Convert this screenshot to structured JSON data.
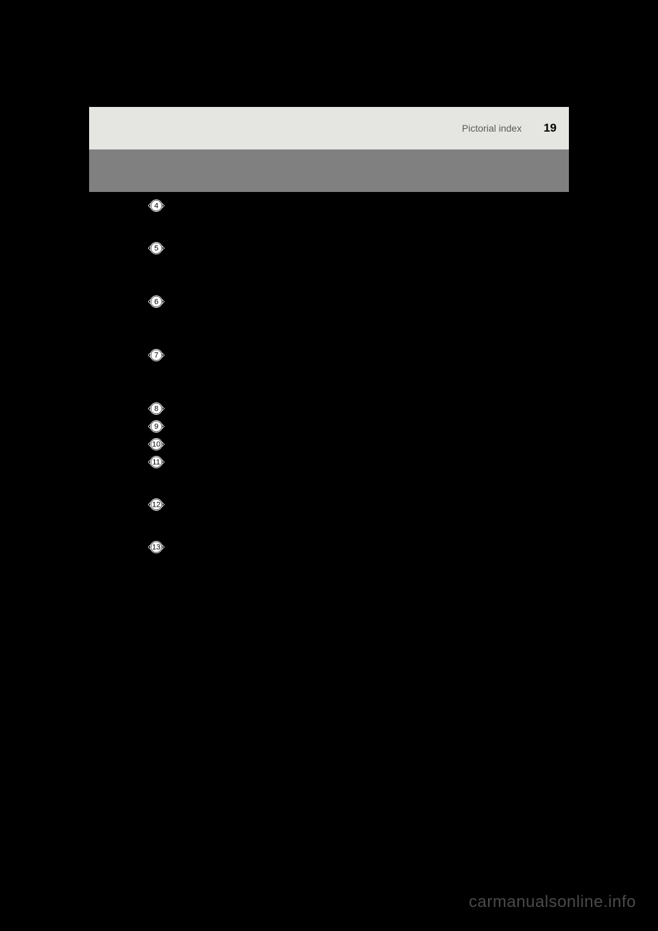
{
  "header": {
    "section_label": "Pictorial index",
    "page_number": "19"
  },
  "list": {
    "items": [
      {
        "number": 4,
        "spacing_after": 42
      },
      {
        "number": 5,
        "spacing_after": 58
      },
      {
        "number": 6,
        "spacing_after": 58
      },
      {
        "number": 7,
        "spacing_after": 58
      },
      {
        "number": 8,
        "spacing_after": 6
      },
      {
        "number": 9,
        "spacing_after": 6
      },
      {
        "number": 10,
        "spacing_after": 6
      },
      {
        "number": 11,
        "spacing_after": 42
      },
      {
        "number": 12,
        "spacing_after": 42
      },
      {
        "number": 13,
        "spacing_after": 0
      }
    ],
    "marker_fill": "#000000",
    "marker_stroke": "#ffffff",
    "marker_diameter": 18,
    "marker_fontsize": 11
  },
  "watermark": {
    "text": "carmanualsonline.info",
    "color": "#4a4a4a"
  },
  "colors": {
    "background": "#000000",
    "header_bg": "#e5e5e2",
    "subbar_bg": "#808080",
    "header_text": "#5a5a5a",
    "page_number": "#000000"
  }
}
